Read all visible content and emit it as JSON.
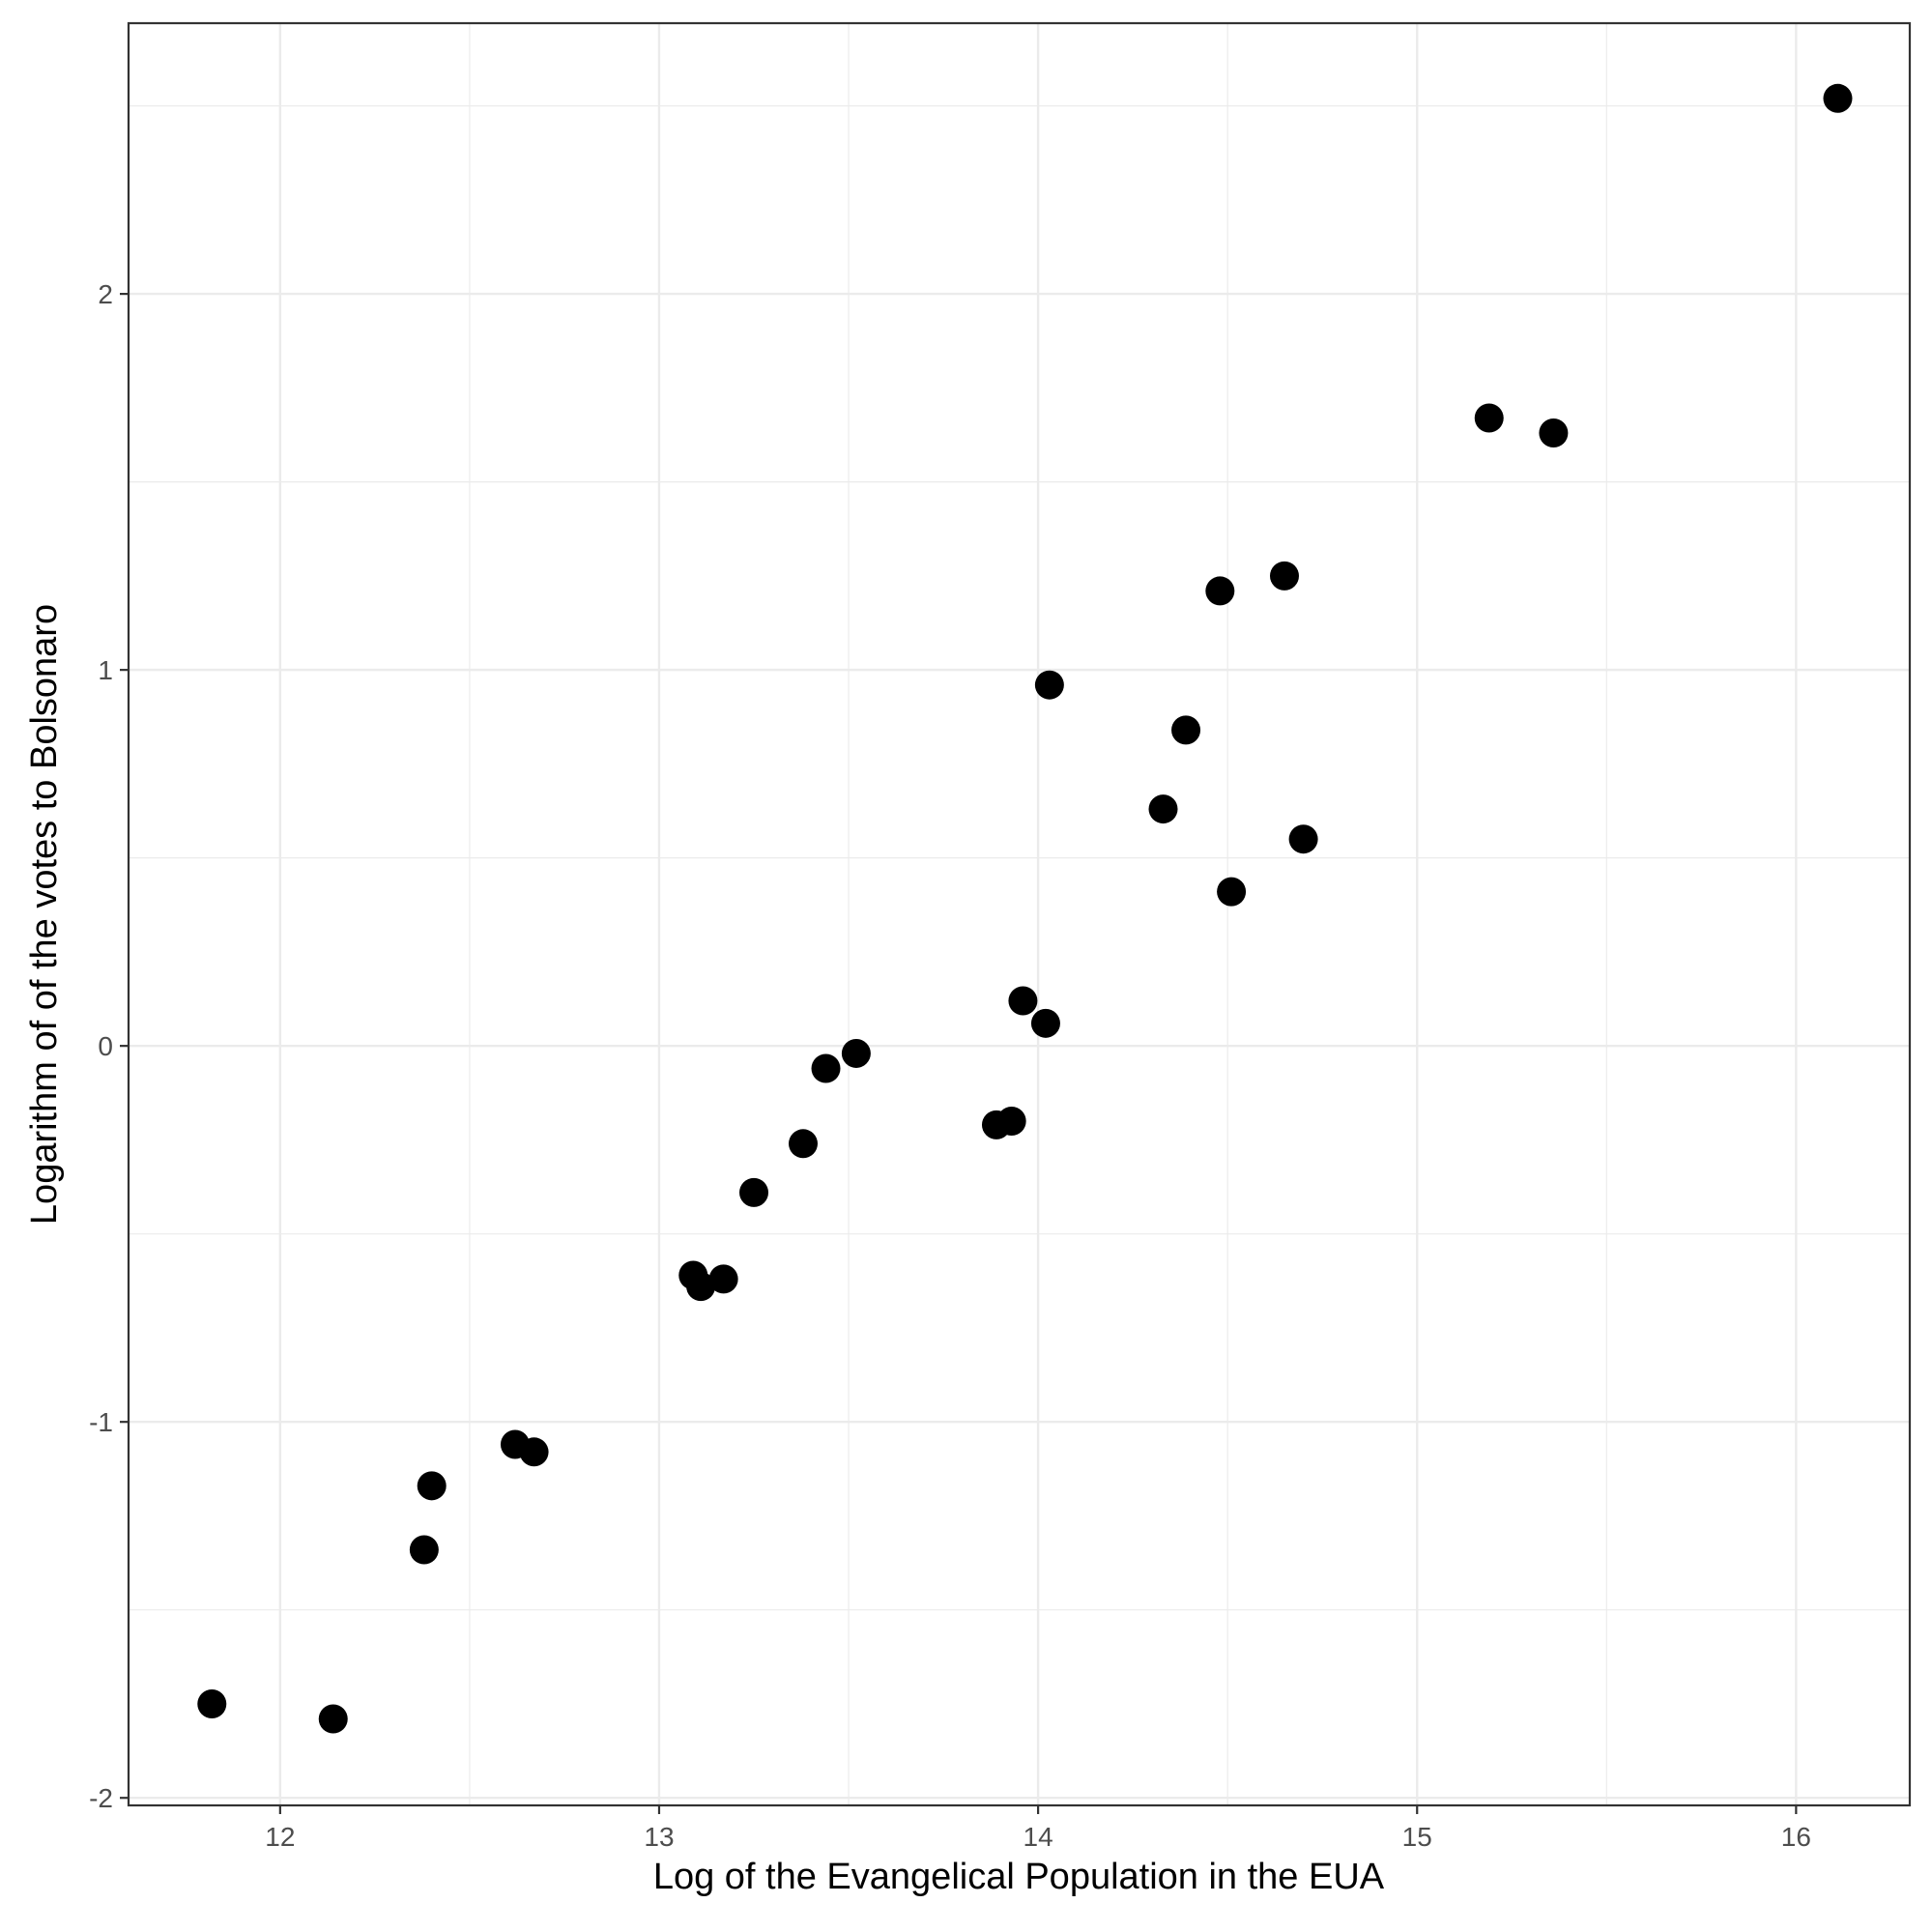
{
  "chart_data": {
    "type": "scatter",
    "title": "",
    "xlabel": "Log of the Evangelical Population in the EUA",
    "ylabel": "Logarithm of of the votes to Bolsonaro",
    "xlim": [
      11.6,
      16.3
    ],
    "ylim": [
      -2.02,
      2.72
    ],
    "x_ticks": [
      12,
      13,
      14,
      15,
      16
    ],
    "x_tick_labels": [
      "12",
      "13",
      "14",
      "15",
      "16"
    ],
    "y_ticks": [
      -2,
      -1,
      0,
      1,
      2
    ],
    "y_tick_labels": [
      "-2",
      "-1",
      "0",
      "1",
      "2"
    ],
    "grid": true,
    "legend": "none",
    "point_color": "#000000",
    "series": [
      {
        "x": [
          11.82,
          12.14,
          12.38,
          12.4,
          12.62,
          12.67,
          13.09,
          13.11,
          13.17,
          13.25,
          13.38,
          13.44,
          13.52,
          13.89,
          13.93,
          13.96,
          14.02,
          14.03,
          14.33,
          14.39,
          14.48,
          14.51,
          14.65,
          14.7,
          15.19,
          15.36,
          16.11
        ],
        "y": [
          -1.75,
          -1.79,
          -1.34,
          -1.17,
          -1.06,
          -1.08,
          -0.61,
          -0.64,
          -0.62,
          -0.39,
          -0.26,
          -0.06,
          -0.02,
          -0.21,
          -0.2,
          0.12,
          0.06,
          0.96,
          0.63,
          0.84,
          1.21,
          0.41,
          1.25,
          0.55,
          1.67,
          1.63,
          2.52
        ]
      }
    ]
  }
}
